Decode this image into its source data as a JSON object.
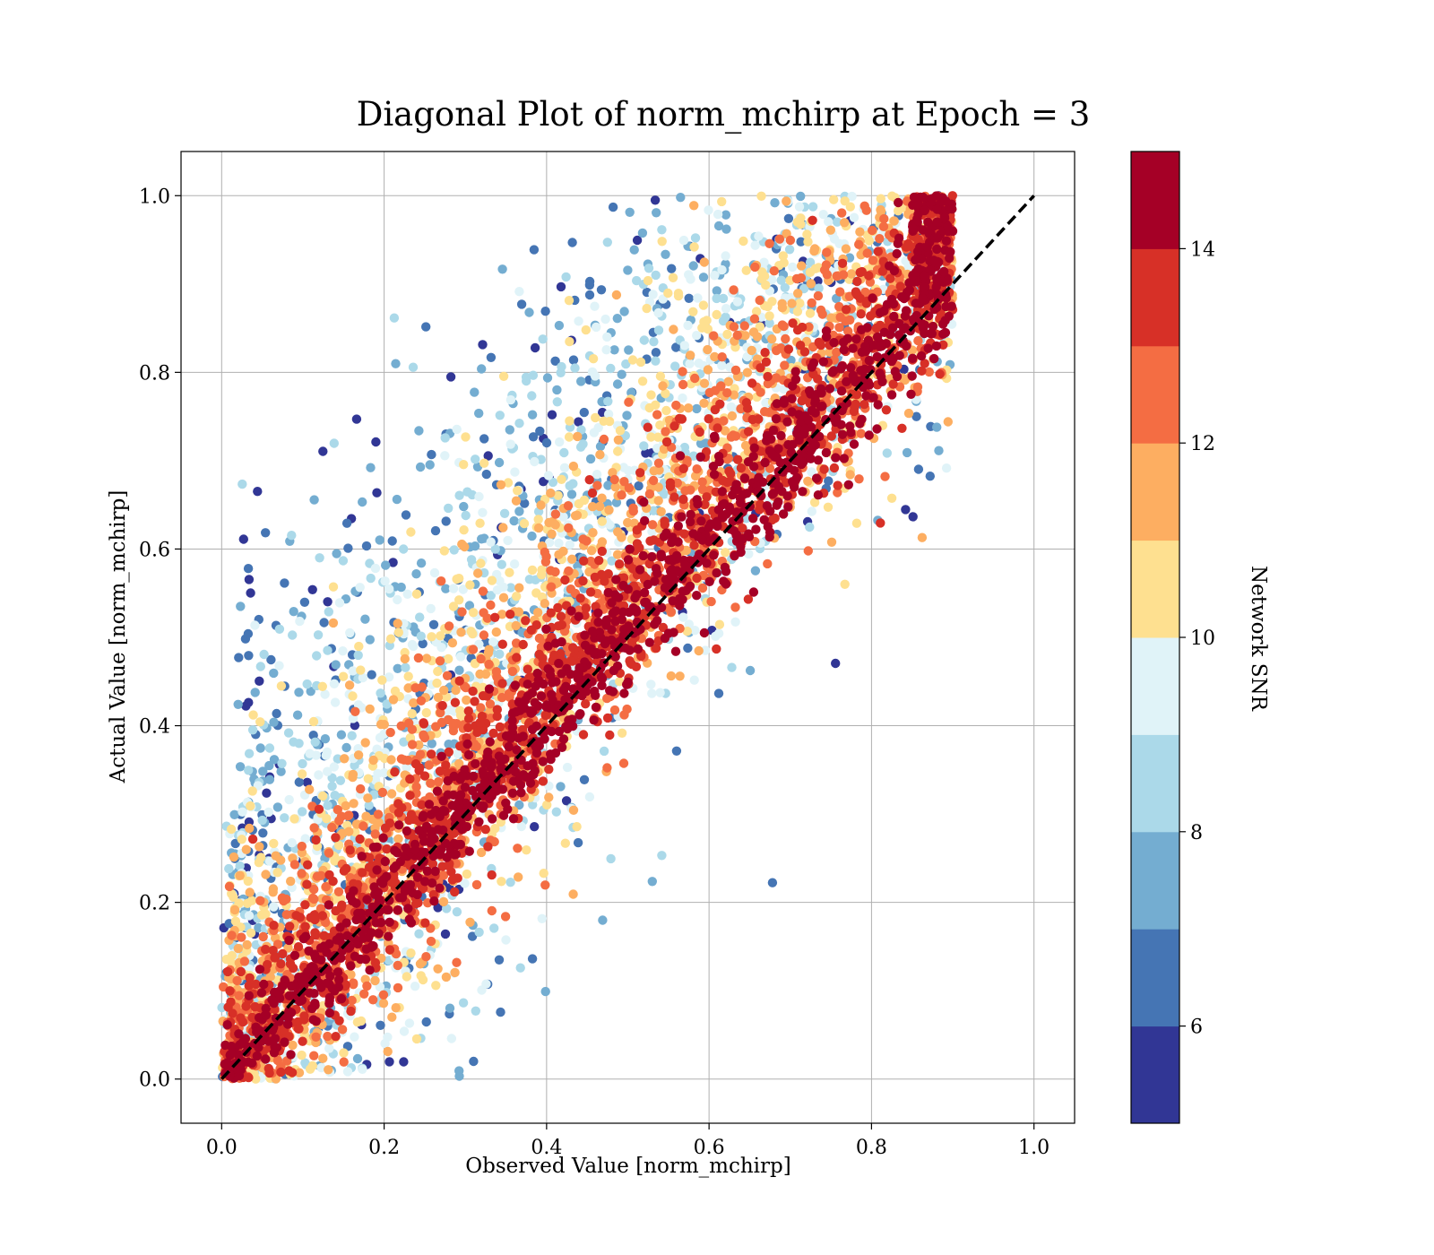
{
  "chart_data": {
    "type": "scatter",
    "title": "Diagonal Plot of norm_mchirp at Epoch = 3",
    "xlabel": "Observed Value [norm_mchirp]",
    "ylabel": "Actual Value [norm_mchirp]",
    "xlim": [
      -0.05,
      1.05
    ],
    "ylim": [
      -0.05,
      1.05
    ],
    "x_ticks": [
      "0.0",
      "0.2",
      "0.4",
      "0.6",
      "0.8",
      "1.0"
    ],
    "y_ticks": [
      "0.0",
      "0.2",
      "0.4",
      "0.6",
      "0.8",
      "1.0"
    ],
    "x_tick_values": [
      0.0,
      0.2,
      0.4,
      0.6,
      0.8,
      1.0
    ],
    "y_tick_values": [
      0.0,
      0.2,
      0.4,
      0.6,
      0.8,
      1.0
    ],
    "grid": true,
    "reference_line": {
      "style": "dashed",
      "color": "#000000",
      "from": [
        0,
        0
      ],
      "to": [
        1,
        1
      ]
    },
    "colorbar": {
      "label": "Network SNR",
      "range": [
        5,
        15
      ],
      "ticks": [
        "6",
        "8",
        "10",
        "12",
        "14"
      ],
      "tick_values": [
        6,
        8,
        10,
        12,
        14
      ],
      "colors": [
        "#313695",
        "#4575b4",
        "#74add1",
        "#abd9e9",
        "#e0f3f8",
        "#fee090",
        "#fdae61",
        "#f46d43",
        "#d73027",
        "#a50026"
      ]
    },
    "points_description_only_visual": "dense cloud of points around the diagonal; high SNR (red) clustered near y=x, low SNR (blue) spread toward upper-left"
  }
}
